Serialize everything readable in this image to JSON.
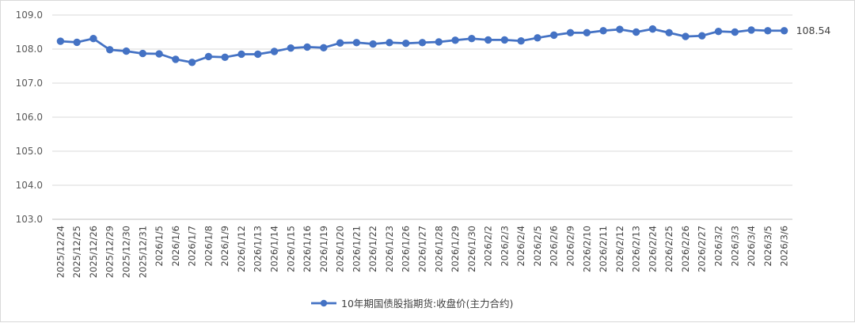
{
  "chart_data": {
    "type": "line",
    "title": "",
    "xlabel": "",
    "ylabel": "",
    "ylim": [
      103.0,
      109.0
    ],
    "yticks": [
      "103.0",
      "104.0",
      "105.0",
      "106.0",
      "107.0",
      "108.0",
      "109.0"
    ],
    "grid": "horizontal",
    "legend_position": "bottom",
    "x": [
      "2025/12/24",
      "2025/12/25",
      "2025/12/26",
      "2025/12/29",
      "2025/12/30",
      "2025/12/31",
      "2026/1/5",
      "2026/1/6",
      "2026/1/7",
      "2026/1/8",
      "2026/1/9",
      "2026/1/12",
      "2026/1/13",
      "2026/1/14",
      "2026/1/15",
      "2026/1/16",
      "2026/1/19",
      "2026/1/20",
      "2026/1/21",
      "2026/1/22",
      "2026/1/23",
      "2026/1/26",
      "2026/1/27",
      "2026/1/28",
      "2026/1/29",
      "2026/1/30",
      "2026/2/2",
      "2026/2/3",
      "2026/2/4",
      "2026/2/5",
      "2026/2/6",
      "2026/2/9",
      "2026/2/10",
      "2026/2/11",
      "2026/2/12",
      "2026/2/13",
      "2026/2/24",
      "2026/2/25",
      "2026/2/26",
      "2026/2/27",
      "2026/3/2",
      "2026/3/3",
      "2026/3/4",
      "2026/3/5",
      "2026/3/6"
    ],
    "series": [
      {
        "name": "10年期国债股指期货:收盘价(主力合约)",
        "color": "#4472c4",
        "values": [
          108.23,
          108.2,
          108.31,
          107.98,
          107.94,
          107.87,
          107.86,
          107.7,
          107.61,
          107.78,
          107.76,
          107.85,
          107.85,
          107.93,
          108.03,
          108.06,
          108.04,
          108.18,
          108.19,
          108.15,
          108.19,
          108.17,
          108.19,
          108.21,
          108.26,
          108.31,
          108.27,
          108.27,
          108.24,
          108.33,
          108.41,
          108.48,
          108.48,
          108.54,
          108.58,
          108.5,
          108.59,
          108.48,
          108.37,
          108.39,
          108.52,
          108.5,
          108.56,
          108.54,
          108.54
        ]
      }
    ],
    "data_labels": [
      {
        "index": 44,
        "text": "108.54"
      }
    ]
  }
}
